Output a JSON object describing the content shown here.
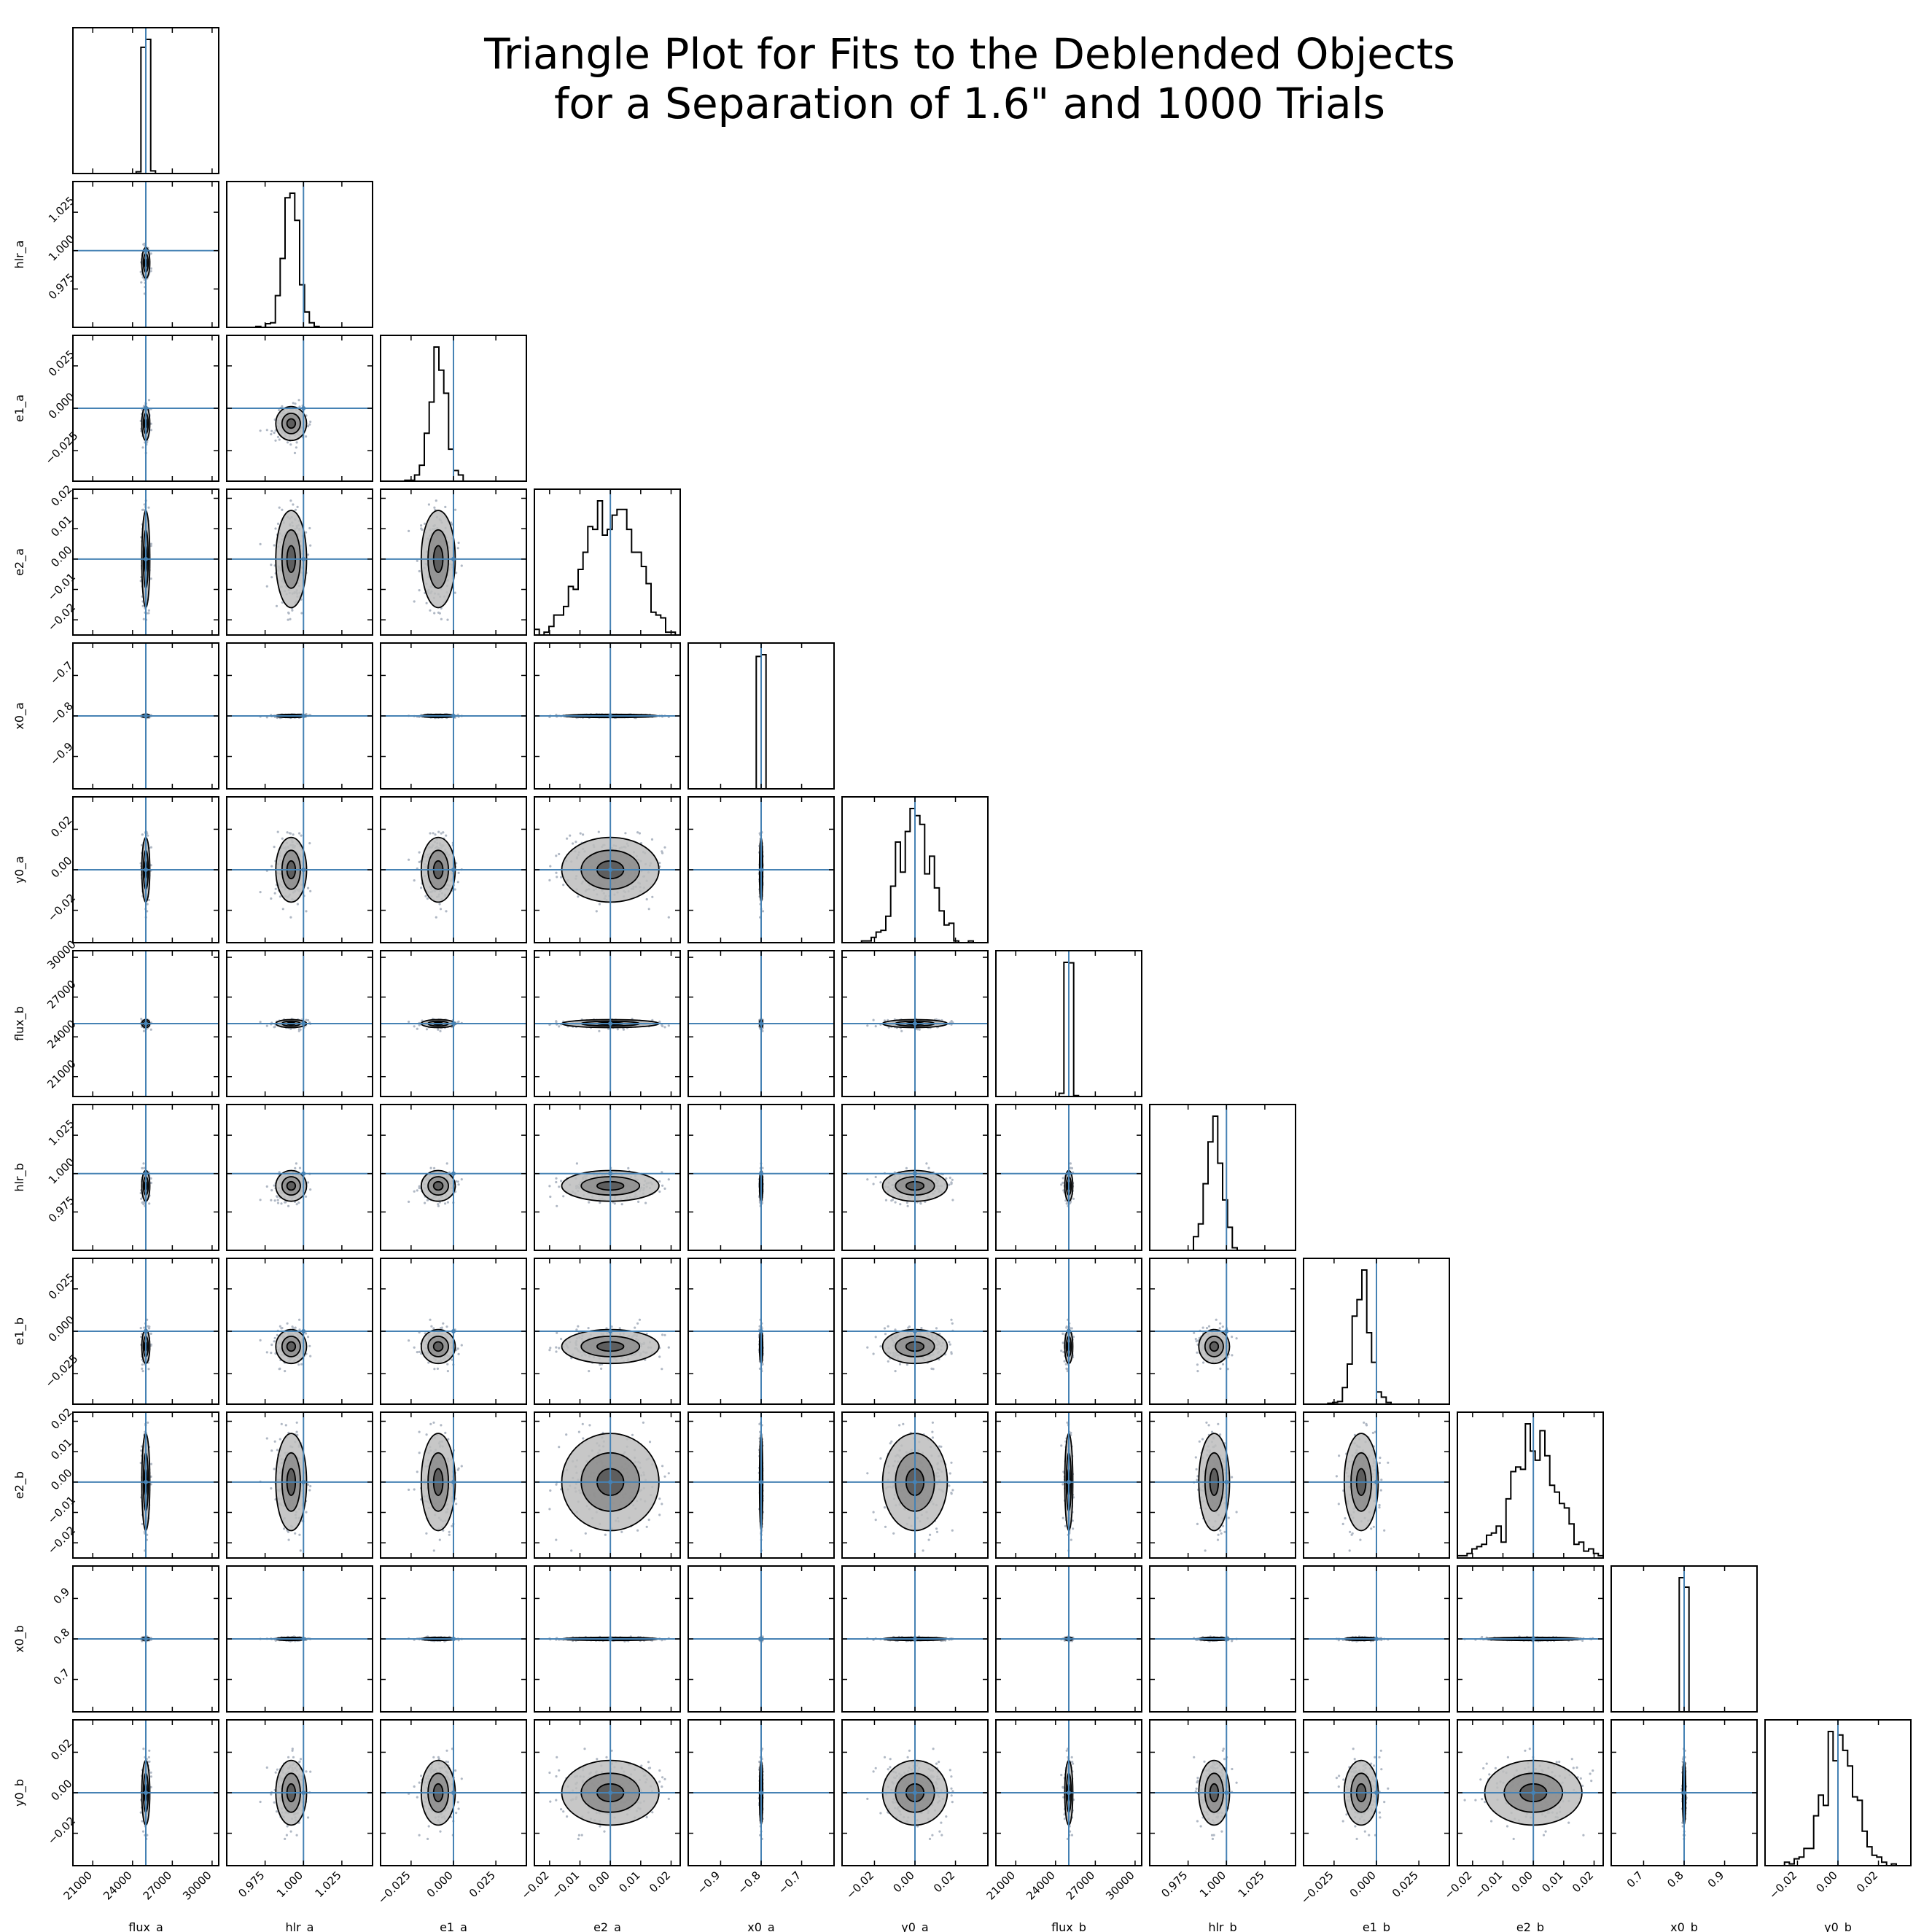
{
  "chart_data": {
    "type": "scatter",
    "subtype": "corner",
    "title": "Triangle Plot for Fits to the Deblended Objects\nfor a Separation of 1.6\" and 1000 Trials",
    "parameters": [
      "flux_a",
      "hlr_a",
      "e1_a",
      "e2_a",
      "x0_a",
      "y0_a",
      "flux_b",
      "hlr_b",
      "e1_b",
      "e2_b",
      "x0_b",
      "y0_b"
    ],
    "truth": [
      25000,
      1.0,
      0.0,
      0.0,
      -0.8,
      0.0,
      25000,
      1.0,
      0.0,
      0.0,
      0.8,
      0.0
    ],
    "posterior_mean": [
      25000,
      0.992,
      -0.009,
      0.0,
      -0.8,
      0.0,
      25000,
      0.992,
      -0.009,
      0.0,
      0.8,
      0.0
    ],
    "posterior_std": [
      150,
      0.005,
      0.005,
      0.008,
      0.002,
      0.008,
      150,
      0.005,
      0.005,
      0.008,
      0.002,
      0.008
    ],
    "axis_ranges": [
      [
        19500,
        30500
      ],
      [
        0.95,
        1.045
      ],
      [
        -0.043,
        0.043
      ],
      [
        -0.025,
        0.023
      ],
      [
        -0.98,
        -0.62
      ],
      [
        -0.036,
        0.036
      ],
      [
        19500,
        30500
      ],
      [
        0.95,
        1.045
      ],
      [
        -0.043,
        0.043
      ],
      [
        -0.025,
        0.023
      ],
      [
        0.62,
        0.98
      ],
      [
        -0.036,
        0.036
      ]
    ],
    "ticks": [
      [
        "21000",
        "24000",
        "27000",
        "30000"
      ],
      [
        "0.975",
        "1.000",
        "1.025"
      ],
      [
        "−0.025",
        "0.000",
        "0.025"
      ],
      [
        "−0.02",
        "−0.01",
        "0.00",
        "0.01",
        "0.02"
      ],
      [
        "−0.9",
        "−0.8",
        "−0.7"
      ],
      [
        "−0.02",
        "0.00",
        "0.02"
      ],
      [
        "21000",
        "24000",
        "27000",
        "30000"
      ],
      [
        "0.975",
        "1.000",
        "1.025"
      ],
      [
        "−0.025",
        "0.000",
        "0.025"
      ],
      [
        "−0.02",
        "−0.01",
        "0.00",
        "0.01",
        "0.02"
      ],
      [
        "0.7",
        "0.8",
        "0.9"
      ],
      [
        "−0.02",
        "0.00",
        "0.02"
      ]
    ],
    "n_trials": 1000,
    "truth_line_color": "#4682b4",
    "contour_fill_color": "#999999",
    "point_color": "#b0b8c4",
    "grid": false
  }
}
